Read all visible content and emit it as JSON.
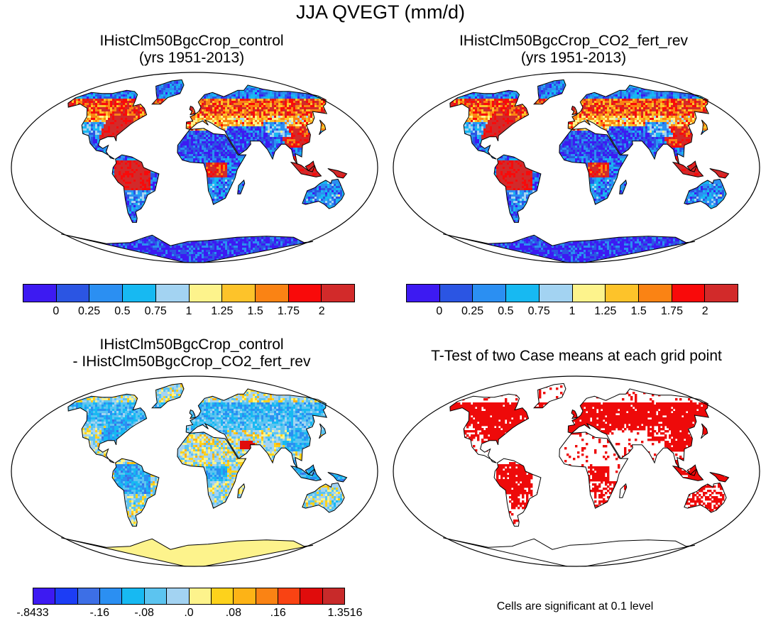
{
  "title": "JJA QVEGT (mm/d)",
  "panels": {
    "tl": {
      "line1": "IHistClm50BgcCrop_control",
      "line2": "(yrs 1951-2013)"
    },
    "tr": {
      "line1": "IHistClm50BgcCrop_CO2_fert_rev",
      "line2": "(yrs 1951-2013)"
    },
    "bl": {
      "line1": "IHistClm50BgcCrop_control",
      "line2": "- IHistClm50BgcCrop_CO2_fert_rev"
    },
    "br": {
      "line1": "T-Test of two Case means at each grid point"
    }
  },
  "colorbar_main": {
    "colors": [
      "#3d1af2",
      "#2b55e3",
      "#2b8ff2",
      "#17b9f2",
      "#a3d3f2",
      "#fdf38c",
      "#fdc32a",
      "#fa8314",
      "#f90a0a",
      "#d22a2a"
    ],
    "labels": [
      "0",
      "0.25",
      "0.5",
      "0.75",
      "1",
      "1.25",
      "1.5",
      "1.75",
      "2"
    ]
  },
  "colorbar_diff": {
    "colors": [
      "#3d1af2",
      "#1c3df5",
      "#3d6fe6",
      "#2b8ff2",
      "#17b9f2",
      "#5cc4f0",
      "#a3d3f2",
      "#fdf38c",
      "#fdd21c",
      "#fdb316",
      "#fa8314",
      "#f94313",
      "#e00c0c",
      "#c82a2a"
    ],
    "labels": [
      ".8433-",
      ".16-",
      ".08-",
      ".0",
      ".08",
      ".16",
      "1.3516"
    ],
    "display_labels": [
      "-.8433",
      "-.16",
      "-.08",
      ".0",
      ".08",
      ".16",
      "1.3516"
    ]
  },
  "note": "Cells are significant at 0.1 level",
  "palette": {
    "sig": "#ee0a0a",
    "ocean": "#ffffff"
  }
}
